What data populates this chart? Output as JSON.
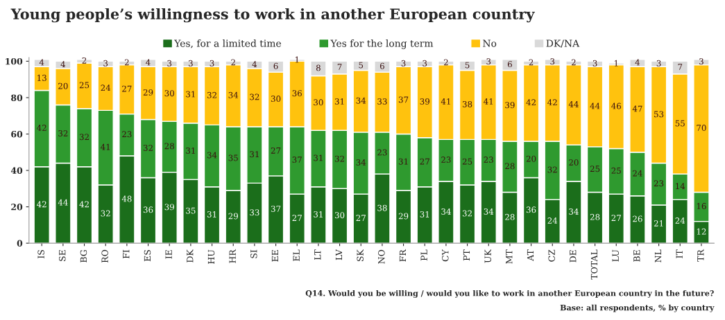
{
  "chart_data": {
    "type": "bar",
    "stacked": true,
    "title": "Young people’s willingness to work in another European country",
    "categories": [
      "IS",
      "SE",
      "BG",
      "RO",
      "FI",
      "ES",
      "IE",
      "DK",
      "HU",
      "HR",
      "SI",
      "EE",
      "EL",
      "LT",
      "LV",
      "SK",
      "NO",
      "FR",
      "PL",
      "CY",
      "PT",
      "UK",
      "MT",
      "AT",
      "CZ",
      "DE",
      "TOTAL",
      "LU",
      "BE",
      "NL",
      "IT",
      "TR"
    ],
    "series": [
      {
        "name": "Yes, for a limited time",
        "color": "#1b6e1b",
        "values": [
          42,
          44,
          42,
          32,
          48,
          36,
          39,
          35,
          31,
          29,
          33,
          37,
          27,
          31,
          30,
          27,
          38,
          29,
          31,
          34,
          32,
          34,
          28,
          36,
          24,
          34,
          28,
          27,
          26,
          21,
          24,
          12
        ]
      },
      {
        "name": "Yes for the long term",
        "color": "#2f9a2f",
        "values": [
          42,
          32,
          32,
          41,
          23,
          32,
          28,
          31,
          34,
          35,
          31,
          27,
          37,
          31,
          32,
          34,
          23,
          31,
          27,
          23,
          25,
          23,
          28,
          20,
          32,
          20,
          25,
          25,
          24,
          23,
          14,
          16
        ]
      },
      {
        "name": "No",
        "color": "#ffc20e",
        "values": [
          13,
          20,
          25,
          24,
          27,
          29,
          30,
          31,
          32,
          34,
          32,
          30,
          36,
          30,
          31,
          34,
          33,
          37,
          39,
          41,
          38,
          41,
          39,
          42,
          42,
          44,
          44,
          46,
          47,
          53,
          55,
          70
        ]
      },
      {
        "name": "DK/NA",
        "color": "#d9d9d9",
        "values": [
          4,
          4,
          2,
          3,
          2,
          4,
          3,
          3,
          3,
          2,
          4,
          6,
          1,
          8,
          7,
          5,
          6,
          3,
          3,
          2,
          5,
          3,
          6,
          2,
          3,
          2,
          3,
          1,
          4,
          3,
          7,
          3
        ]
      }
    ],
    "ylim": [
      0,
      102
    ],
    "yticks": [
      0,
      20,
      40,
      60,
      80,
      100
    ],
    "data_labels": true,
    "legend": "top",
    "grid": false,
    "annotations": [
      "Q14. Would you be willing / would you like to work in another European country in the future?",
      "Base: all respondents, % by country"
    ]
  }
}
